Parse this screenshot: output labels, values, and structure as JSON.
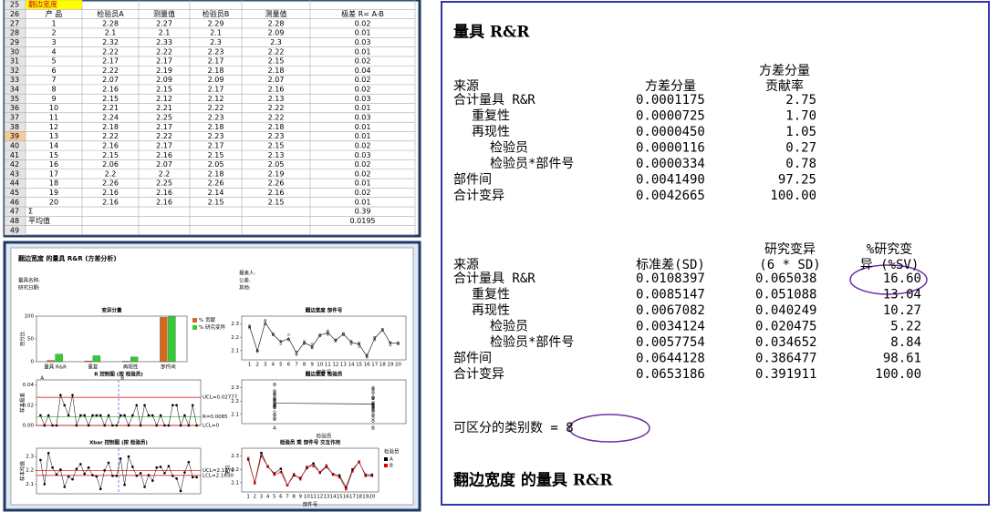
{
  "spreadsheet": {
    "title": "翻边宽度",
    "row_numbers": [
      25,
      26,
      27,
      28,
      29,
      30,
      31,
      32,
      33,
      34,
      35,
      36,
      37,
      38,
      39,
      40,
      41,
      42,
      43,
      44,
      45,
      46,
      47,
      48,
      49
    ],
    "header": [
      "产 品",
      "检验员A",
      "测量值",
      "检验员B",
      "测量值",
      "极差 R= A-B"
    ],
    "rows": [
      [
        "1",
        "2.28",
        "2.27",
        "2.29",
        "2.28",
        "0.02"
      ],
      [
        "2",
        "2.1",
        "2.1",
        "2.1",
        "2.09",
        "0.01"
      ],
      [
        "3",
        "2.32",
        "2.33",
        "2.3",
        "2.3",
        "0.03"
      ],
      [
        "4",
        "2.22",
        "2.22",
        "2.23",
        "2.22",
        "0.01"
      ],
      [
        "5",
        "2.17",
        "2.17",
        "2.17",
        "2.15",
        "0.02"
      ],
      [
        "6",
        "2.22",
        "2.19",
        "2.18",
        "2.18",
        "0.04"
      ],
      [
        "7",
        "2.07",
        "2.09",
        "2.09",
        "2.07",
        "0.02"
      ],
      [
        "8",
        "2.16",
        "2.15",
        "2.17",
        "2.16",
        "0.02"
      ],
      [
        "9",
        "2.15",
        "2.12",
        "2.12",
        "2.13",
        "0.03"
      ],
      [
        "10",
        "2.21",
        "2.21",
        "2.22",
        "2.22",
        "0.01"
      ],
      [
        "11",
        "2.24",
        "2.25",
        "2.23",
        "2.22",
        "0.03"
      ],
      [
        "12",
        "2.18",
        "2.17",
        "2.18",
        "2.18",
        "0.01"
      ],
      [
        "13",
        "2.22",
        "2.22",
        "2.23",
        "2.23",
        "0.01"
      ],
      [
        "14",
        "2.16",
        "2.17",
        "2.17",
        "2.15",
        "0.02"
      ],
      [
        "15",
        "2.15",
        "2.16",
        "2.15",
        "2.13",
        "0.03"
      ],
      [
        "16",
        "2.06",
        "2.07",
        "2.05",
        "2.05",
        "0.02"
      ],
      [
        "17",
        "2.2",
        "2.2",
        "2.18",
        "2.19",
        "0.02"
      ],
      [
        "18",
        "2.26",
        "2.25",
        "2.26",
        "2.26",
        "0.01"
      ],
      [
        "19",
        "2.16",
        "2.16",
        "2.14",
        "2.16",
        "0.02"
      ],
      [
        "20",
        "2.16",
        "2.16",
        "2.15",
        "2.15",
        "0.01"
      ]
    ],
    "sum": {
      "label": "Σ",
      "value": "0.39"
    },
    "average": {
      "label": "平均值",
      "value": "0.0195"
    }
  },
  "report": {
    "title": "翻边宽度 的量具 R&R (方差分析)",
    "info_left": [
      "量具名称:",
      "研究日期:"
    ],
    "info_right": [
      "报表人:",
      "公差:",
      "其他:"
    ],
    "components": {
      "type": "bar",
      "title": "变异分量",
      "y_label": "百分比",
      "categories": [
        "量具 R&R",
        "重复",
        "再现性",
        "部件间"
      ],
      "ylim": [
        0,
        100
      ],
      "yticks": [
        0,
        50,
        100
      ],
      "series": [
        {
          "name": "% 贡献",
          "color": "#d2691e"
        },
        {
          "name": "% 研究变异",
          "color": "#33cc33"
        }
      ]
    },
    "r_chart": {
      "type": "line",
      "title": "R 控制图 (按 检验员)",
      "y_label": "样本极差",
      "groups": [
        "A",
        "B"
      ],
      "ylim": [
        0,
        0.045
      ],
      "yticks": [
        {
          "value": 0,
          "label": "0.00"
        },
        0.02,
        0.04
      ],
      "limits": [
        {
          "value": 0.02777,
          "label": "UCL=0.02777"
        },
        {
          "value": 0.0085,
          "label": "R=0.0085"
        },
        {
          "value": 0,
          "label": "LCL=0"
        }
      ]
    },
    "xbar_chart": {
      "type": "line",
      "title": "Xbar 控制图 (按 检验员)",
      "y_label": "样本均值",
      "ylim": [
        2.03,
        2.36
      ],
      "yticks": [
        2.1,
        2.2,
        2.3
      ],
      "limits": [
        {
          "value": 2.197,
          "label": "UCL=2.1970"
        },
        {
          "value": 2.163,
          "label": "LCL=2.1630"
        }
      ]
    },
    "parts_chart": {
      "type": "line",
      "title": "翻边宽度 部件号",
      "x_label": "部件号",
      "ylim": [
        2.03,
        2.36
      ],
      "yticks": [
        2.1,
        2.2,
        2.3
      ]
    },
    "operator_chart": {
      "type": "scatter",
      "title": "翻边宽度 检验员",
      "x_label": "检验员",
      "categories": [
        "A",
        "B"
      ],
      "ylim": [
        2.03,
        2.36
      ],
      "yticks": [
        2.1,
        2.2,
        2.3
      ]
    },
    "interaction_chart": {
      "type": "line",
      "title": "检验员 乘 部件号 交互作用",
      "x_label": "部件号",
      "y_label": "平均",
      "legend_title": "检验员",
      "ylim": [
        2.03,
        2.36
      ],
      "yticks": [
        2.1,
        2.2,
        2.3
      ],
      "series": [
        {
          "name": "A",
          "color": "#000000"
        },
        {
          "name": "B",
          "color": "#dd0000"
        }
      ]
    }
  },
  "session": {
    "title": "量具 R&R",
    "variance": {
      "header": [
        [
          "来源"
        ],
        [
          "方差分量"
        ],
        [
          "方差分量",
          "贡献率"
        ]
      ],
      "rows": [
        [
          "合计量具 R&R",
          "0.0001175",
          "2.75"
        ],
        [
          "重复性",
          "0.0000725",
          "1.70"
        ],
        [
          "再现性",
          "0.0000450",
          "1.05"
        ],
        [
          "检验员",
          "0.0000116",
          "0.27"
        ],
        [
          "检验员*部件号",
          "0.0000334",
          "0.78"
        ],
        [
          "部件间",
          "0.0041490",
          "97.25"
        ],
        [
          "合计变异",
          "0.0042665",
          "100.00"
        ]
      ]
    },
    "study": {
      "header": [
        [
          "来源"
        ],
        [
          "标准差(SD)"
        ],
        [
          "研究变异",
          "(6 * SD)"
        ],
        [
          "%研究变",
          "异 (%SV)"
        ]
      ],
      "rows": [
        [
          "合计量具 R&R",
          "0.0108397",
          "0.065038",
          "16.60"
        ],
        [
          "重复性",
          "0.0085147",
          "0.051088",
          "13.04"
        ],
        [
          "再现性",
          "0.0067082",
          "0.040249",
          "10.27"
        ],
        [
          "检验员",
          "0.0034124",
          "0.020475",
          "5.22"
        ],
        [
          "检验员*部件号",
          "0.0057754",
          "0.034652",
          "8.84"
        ],
        [
          "部件间",
          "0.0644128",
          "0.386477",
          "98.61"
        ],
        [
          "合计变异",
          "0.0653186",
          "0.391911",
          "100.00"
        ]
      ]
    },
    "distinct_categories": "可区分的类别数 = 8",
    "footer": "翻边宽度 的量具 R&R"
  }
}
